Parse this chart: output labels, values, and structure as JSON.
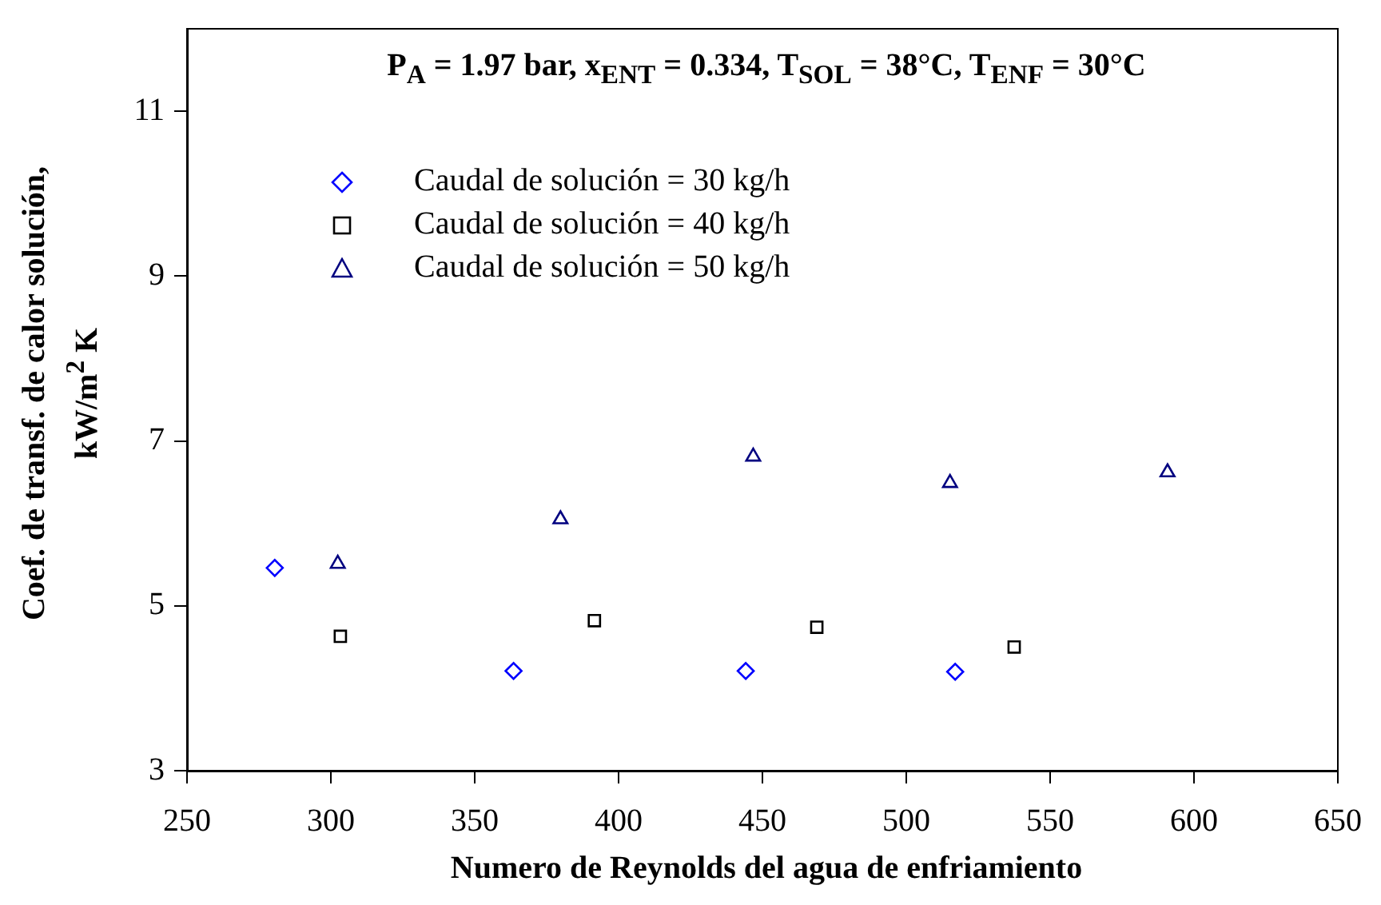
{
  "chart_data": {
    "type": "scatter",
    "title": "P$_{A}$ = 1.97 bar, x$_{ENT}$ = 0.334, T$_{SOL}$ = 38°C, T$_{ENF}$ = 30°C",
    "xlabel": "Numero de Reynolds del agua de enfriamiento",
    "ylabel": "Coef. de transf. de calor solución, kW/m$^{2}$ K",
    "xlim": [
      250,
      650
    ],
    "xticks": [
      250,
      300,
      350,
      400,
      450,
      500,
      550,
      600,
      650
    ],
    "ylim": [
      3,
      12
    ],
    "yticks": [
      3,
      5,
      7,
      9,
      11
    ],
    "grid": false,
    "legend": "top left",
    "series": [
      {
        "name": "Caudal de solución = 30 kg/h",
        "color": "#0000ff",
        "marker": "diamond",
        "x": [
          280.5,
          363.5,
          444.2,
          517
        ],
        "values": [
          5.46,
          4.21,
          4.21,
          4.2
        ]
      },
      {
        "name": "Caudal de solución = 40 kg/h",
        "color": "#000000",
        "marker": "square",
        "x": [
          303.3,
          391.6,
          468.9,
          537.5
        ],
        "values": [
          4.63,
          4.82,
          4.74,
          4.5
        ]
      },
      {
        "name": "Caudal de solución = 50 kg/h",
        "color": "#000080",
        "marker": "triangle",
        "x": [
          302.4,
          379.8,
          446.8,
          515.2,
          590.8
        ],
        "values": [
          5.51,
          6.05,
          6.81,
          6.49,
          6.62
        ]
      }
    ]
  }
}
